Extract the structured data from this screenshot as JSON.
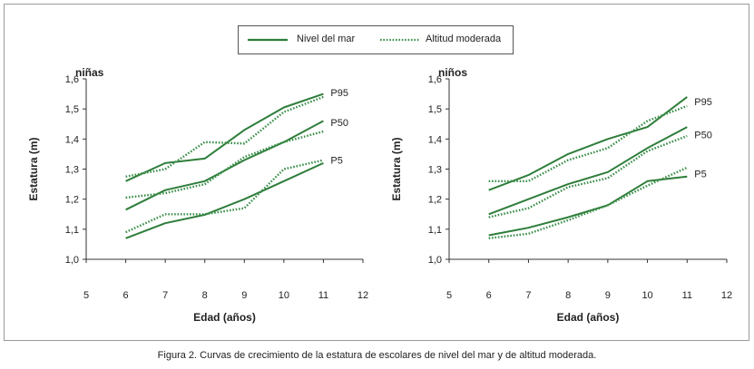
{
  "legend": {
    "sea_level": "Nivel del mar",
    "moderate_altitude": "Altitud moderada"
  },
  "colors": {
    "sea_level": "#2e7d3a",
    "moderate_altitude": "#3a8f4a",
    "axis": "#333333",
    "text": "#222222"
  },
  "caption": "Figura 2. Curvas de crecimiento de la estatura de escolares de nivel del mar y de altitud moderada.",
  "chart_data": [
    {
      "type": "line",
      "title": "niñas",
      "xlabel": "Edad (años)",
      "ylabel": "Estatura (m)",
      "xlim": [
        5,
        12
      ],
      "ylim": [
        1.0,
        1.6
      ],
      "xticks": [
        "5",
        "6",
        "7",
        "8",
        "9",
        "10",
        "11",
        "12"
      ],
      "yticks": [
        "1,0",
        "1,1",
        "1,2",
        "1,3",
        "1,4",
        "1,5",
        "1,6"
      ],
      "x": [
        6,
        7,
        8,
        9,
        10,
        11
      ],
      "series": [
        {
          "name": "Nivel del mar",
          "group": "sea_level",
          "percentile": "P95",
          "values": [
            1.26,
            1.32,
            1.335,
            1.43,
            1.505,
            1.55
          ]
        },
        {
          "name": "Altitud moderada",
          "group": "moderate_altitude",
          "percentile": "P95",
          "values": [
            1.275,
            1.3,
            1.39,
            1.385,
            1.49,
            1.54
          ]
        },
        {
          "name": "Nivel del mar",
          "group": "sea_level",
          "percentile": "P50",
          "values": [
            1.165,
            1.23,
            1.26,
            1.33,
            1.39,
            1.46
          ]
        },
        {
          "name": "Altitud moderada",
          "group": "moderate_altitude",
          "percentile": "P50",
          "values": [
            1.205,
            1.22,
            1.25,
            1.34,
            1.39,
            1.425
          ]
        },
        {
          "name": "Nivel del mar",
          "group": "sea_level",
          "percentile": "P5",
          "values": [
            1.07,
            1.12,
            1.148,
            1.2,
            1.26,
            1.32
          ]
        },
        {
          "name": "Altitud moderada",
          "group": "moderate_altitude",
          "percentile": "P5",
          "values": [
            1.09,
            1.15,
            1.15,
            1.17,
            1.3,
            1.33
          ]
        }
      ],
      "percentile_labels": [
        {
          "text": "P95",
          "y": 1.555
        },
        {
          "text": "P50",
          "y": 1.455
        },
        {
          "text": "P5",
          "y": 1.33
        }
      ]
    },
    {
      "type": "line",
      "title": "niños",
      "xlabel": "Edad (años)",
      "ylabel": "Estatura (m)",
      "xlim": [
        5,
        12
      ],
      "ylim": [
        1.0,
        1.6
      ],
      "xticks": [
        "5",
        "6",
        "7",
        "8",
        "9",
        "10",
        "11",
        "12"
      ],
      "yticks": [
        "1,0",
        "1,1",
        "1,2",
        "1,3",
        "1,4",
        "1,5",
        "1,6"
      ],
      "x": [
        6,
        7,
        8,
        9,
        10,
        11
      ],
      "series": [
        {
          "name": "Nivel del mar",
          "group": "sea_level",
          "percentile": "P95",
          "values": [
            1.23,
            1.28,
            1.35,
            1.4,
            1.44,
            1.54
          ]
        },
        {
          "name": "Altitud moderada",
          "group": "moderate_altitude",
          "percentile": "P95",
          "values": [
            1.26,
            1.26,
            1.33,
            1.37,
            1.46,
            1.51
          ]
        },
        {
          "name": "Nivel del mar",
          "group": "sea_level",
          "percentile": "P50",
          "values": [
            1.15,
            1.2,
            1.25,
            1.29,
            1.37,
            1.44
          ]
        },
        {
          "name": "Altitud moderada",
          "group": "moderate_altitude",
          "percentile": "P50",
          "values": [
            1.14,
            1.17,
            1.24,
            1.27,
            1.36,
            1.41
          ]
        },
        {
          "name": "Nivel del mar",
          "group": "sea_level",
          "percentile": "P5",
          "values": [
            1.08,
            1.105,
            1.14,
            1.18,
            1.26,
            1.275
          ]
        },
        {
          "name": "Altitud moderada",
          "group": "moderate_altitude",
          "percentile": "P5",
          "values": [
            1.07,
            1.085,
            1.13,
            1.18,
            1.245,
            1.305
          ]
        }
      ],
      "percentile_labels": [
        {
          "text": "P95",
          "y": 1.525
        },
        {
          "text": "P50",
          "y": 1.415
        },
        {
          "text": "P5",
          "y": 1.285
        }
      ]
    }
  ]
}
